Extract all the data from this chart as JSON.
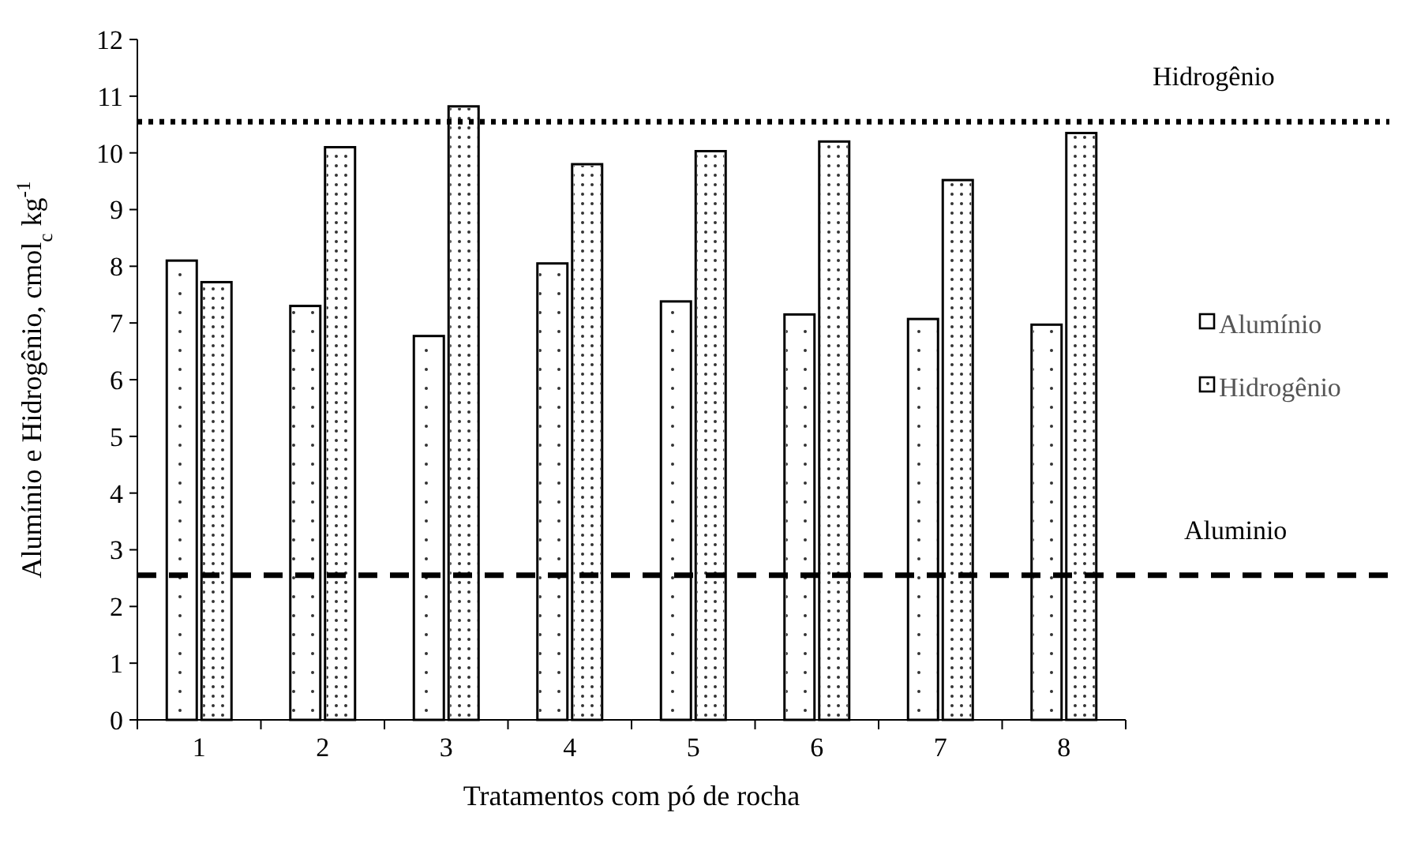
{
  "chart_data": {
    "type": "bar",
    "xlabel": "Tratamentos com pó de rocha",
    "ylabel": "Alumínio e Hidrogênio, cmol$_{c}$ kg$^{-1}$",
    "categories": [
      "1",
      "2",
      "3",
      "4",
      "5",
      "6",
      "7",
      "8"
    ],
    "series": [
      {
        "name": "Alumínio",
        "color": "#ffffff",
        "values": [
          8.1,
          7.3,
          6.77,
          8.05,
          7.38,
          7.15,
          7.07,
          6.97
        ]
      },
      {
        "name": "Hidrogênio",
        "color": "#ffffff",
        "values": [
          7.72,
          10.1,
          10.82,
          9.8,
          10.03,
          10.2,
          9.52,
          10.35
        ]
      }
    ],
    "ylim": [
      0,
      12
    ],
    "yticks": [
      0,
      1,
      2,
      3,
      4,
      5,
      6,
      7,
      8,
      9,
      10,
      11,
      12
    ],
    "grid": false,
    "legend": "right",
    "ref_lines": [
      {
        "axis": "y",
        "value": 10.55,
        "label": "Hidrogênio",
        "line_style": "dotted"
      },
      {
        "axis": "y",
        "value": 2.55,
        "label": "Aluminio",
        "line_style": "dashed"
      }
    ]
  }
}
